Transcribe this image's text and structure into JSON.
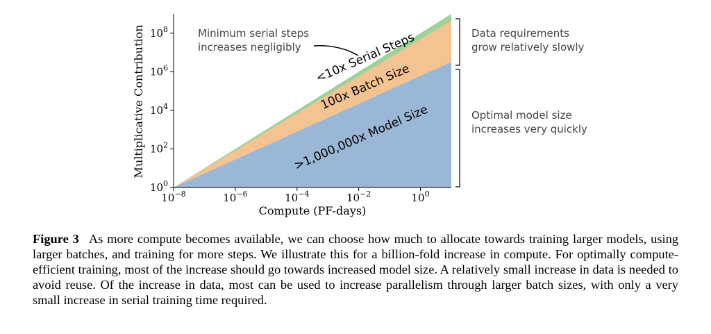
{
  "chart_data": {
    "type": "area",
    "xlabel": "Compute (PF-days)",
    "ylabel": "Multiplicative Contribution",
    "x_scale": "log",
    "y_scale": "log",
    "xlim": [
      1e-08,
      10
    ],
    "ylim": [
      1,
      1000000000.0
    ],
    "x_ticks": [
      {
        "value": 1e-08,
        "base": "10",
        "exp": "−8"
      },
      {
        "value": 1e-06,
        "base": "10",
        "exp": "−6"
      },
      {
        "value": 0.0001,
        "base": "10",
        "exp": "−4"
      },
      {
        "value": 0.01,
        "base": "10",
        "exp": "−2"
      },
      {
        "value": 1,
        "base": "10",
        "exp": "0"
      }
    ],
    "y_ticks": [
      {
        "value": 1,
        "base": "10",
        "exp": "0"
      },
      {
        "value": 100.0,
        "base": "10",
        "exp": "2"
      },
      {
        "value": 10000.0,
        "base": "10",
        "exp": "4"
      },
      {
        "value": 1000000.0,
        "base": "10",
        "exp": "6"
      },
      {
        "value": 100000000.0,
        "base": "10",
        "exp": "8"
      }
    ],
    "x": [
      1e-08,
      10
    ],
    "series": [
      {
        "label_text": ">1,000,000x Model Size",
        "color": "#9ab7d6",
        "values": [
          1,
          3200000.0
        ]
      },
      {
        "label_text": "100x Batch Size",
        "color": "#f4c392",
        "values": [
          1,
          450000000.0
        ]
      },
      {
        "label_text": "<10x Serial Steps",
        "color": "#9cd39c",
        "values": [
          1,
          1000000000.0
        ]
      }
    ],
    "annotations": {
      "serial": [
        "Minimum serial steps",
        "increases negligibly"
      ],
      "data": [
        "Data requirements",
        "grow relatively slowly"
      ],
      "model": [
        "Optimal model size",
        "increases very quickly"
      ]
    },
    "grid": false
  },
  "caption": {
    "label": "Figure 3",
    "text": "As more compute becomes available, we can choose how much to allocate towards training larger models, using larger batches, and training for more steps. We illustrate this for a billion-fold increase in compute. For optimally compute-efficient training, most of the increase should go towards increased model size. A relatively small increase in data is needed to avoid reuse. Of the increase in data, most can be used to increase parallelism through larger batch sizes, with only a very small increase in serial training time required."
  }
}
